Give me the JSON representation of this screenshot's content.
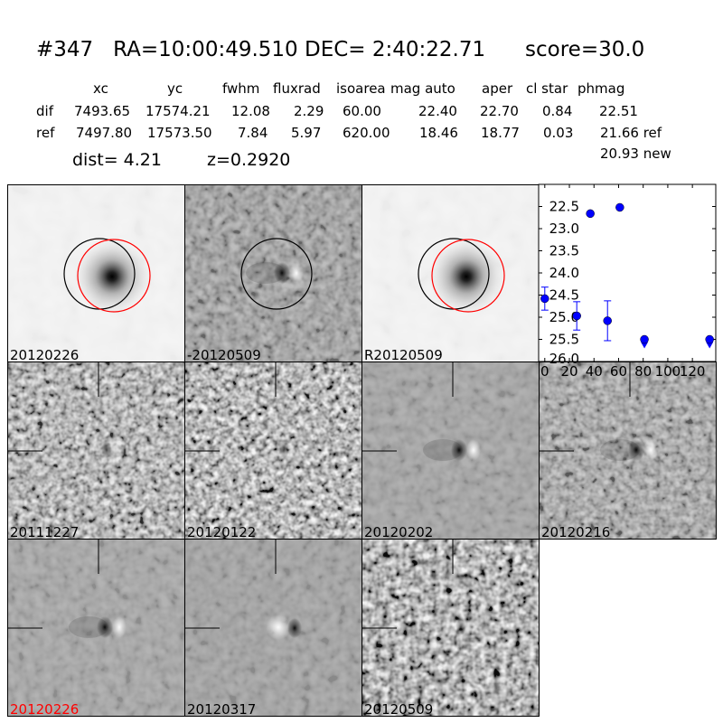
{
  "title": {
    "id": "#347",
    "ra": "RA=10:00:49.510",
    "dec": "DEC= 2:40:22.71",
    "score": "score=30.0"
  },
  "table": {
    "headers": [
      "xc",
      "yc",
      "fwhm",
      "fluxrad",
      "isoarea",
      "mag auto",
      "aper",
      "cl star",
      "phmag"
    ],
    "rows": [
      {
        "label": "dif",
        "values": [
          "7493.65",
          "17574.21",
          "12.08",
          "2.29",
          "60.00",
          "22.40",
          "22.70",
          "0.84",
          "22.51"
        ]
      },
      {
        "label": "ref",
        "values": [
          "7497.80",
          "17573.50",
          "7.84",
          "5.97",
          "620.00",
          "18.46",
          "18.77",
          "0.03",
          "21.66 ref"
        ]
      }
    ],
    "extra_phmag": "20.93 new",
    "dist": "dist=  4.21",
    "z": "z=0.2920"
  },
  "stamps": [
    {
      "label": "20120226",
      "label_color": "#000000"
    },
    {
      "label": "-20120509",
      "label_color": "#000000"
    },
    {
      "label": "R20120509",
      "label_color": "#000000"
    },
    {
      "label": "20111227",
      "label_color": "#000000"
    },
    {
      "label": "20120122",
      "label_color": "#000000"
    },
    {
      "label": "20120202",
      "label_color": "#000000"
    },
    {
      "label": "20120216",
      "label_color": "#000000"
    },
    {
      "label": "20120226",
      "label_color": "#ff0000"
    },
    {
      "label": "20120317",
      "label_color": "#000000"
    },
    {
      "label": "20120509",
      "label_color": "#000000"
    }
  ],
  "chart_data": {
    "type": "scatter",
    "xlim": [
      -5,
      139
    ],
    "ylim": [
      26.0,
      22.0
    ],
    "y_inverted": true,
    "xticks": [
      "0",
      "20",
      "40",
      "60",
      "80",
      "100",
      "120"
    ],
    "yticks": [
      "22.5",
      "23.0",
      "23.5",
      "24.0",
      "24.5",
      "25.0",
      "25.5",
      "26.0"
    ],
    "color": "#0000ff",
    "points": [
      {
        "x": 0,
        "y": 24.58,
        "err": 0.26,
        "limit": false
      },
      {
        "x": 26,
        "y": 24.97,
        "err": 0.32,
        "limit": false
      },
      {
        "x": 37,
        "y": 22.66,
        "err": 0,
        "limit": false
      },
      {
        "x": 51,
        "y": 25.08,
        "err": 0.45,
        "limit": false
      },
      {
        "x": 61,
        "y": 22.52,
        "err": 0,
        "limit": false
      },
      {
        "x": 81,
        "y": 25.5,
        "err": 0,
        "limit": true
      },
      {
        "x": 134,
        "y": 25.5,
        "err": 0,
        "limit": true
      }
    ]
  }
}
